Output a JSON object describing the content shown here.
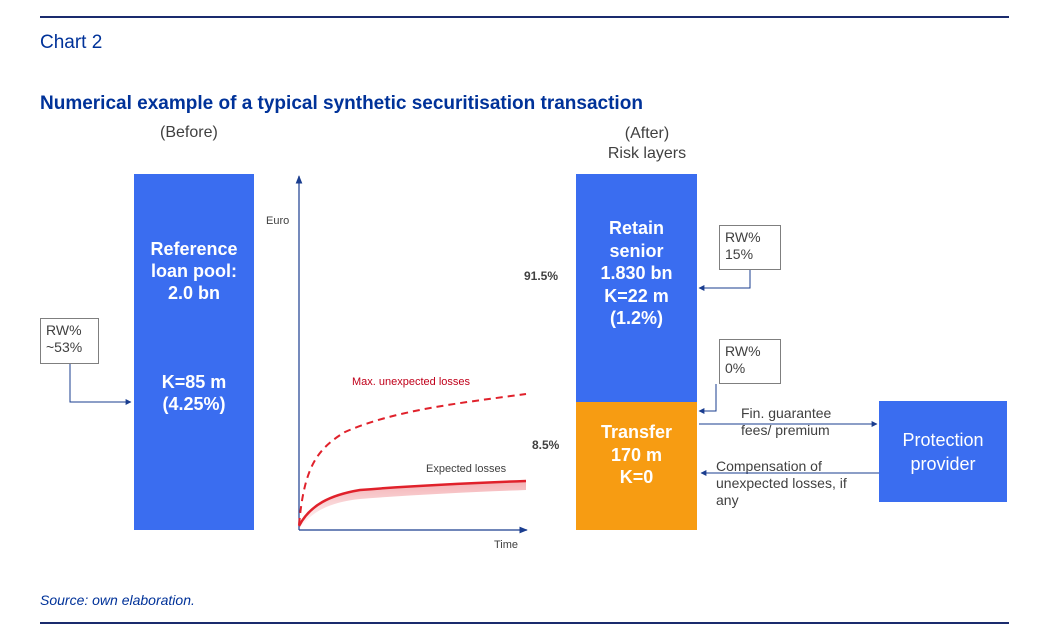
{
  "header": {
    "chart_number": "Chart 2",
    "title": "Numerical example of a typical synthetic securitisation transaction"
  },
  "before": {
    "heading": "(Before)",
    "box_title_lines": [
      "Reference",
      "loan pool:",
      "2.0 bn"
    ],
    "box_k_lines": [
      "K=85 m",
      "(4.25%)"
    ],
    "rw": [
      "RW%",
      "~53%"
    ]
  },
  "loss_chart": {
    "y_axis_label": "Euro",
    "x_axis_label": "Time",
    "series": [
      {
        "name": "Max. unexpected losses",
        "style": "dashed",
        "color": "#e0212b"
      },
      {
        "name": "Expected losses",
        "style": "solid",
        "color": "#e0212b"
      }
    ]
  },
  "after": {
    "heading_lines": [
      "(After)",
      "Risk layers"
    ],
    "senior": {
      "pct": "91.5%",
      "lines": [
        "Retain",
        "senior",
        "1.830 bn",
        "K=22 m",
        "(1.2%)"
      ],
      "rw": [
        "RW%",
        "15%"
      ]
    },
    "transfer": {
      "pct": "8.5%",
      "lines": [
        "Transfer",
        "170 m",
        "K=0"
      ],
      "rw": [
        "RW%",
        "0%"
      ]
    }
  },
  "flows": {
    "to_provider": [
      "Fin. guarantee",
      "fees/ premium"
    ],
    "from_provider": [
      "Compensation of",
      "unexpected losses, if",
      "any"
    ]
  },
  "provider": {
    "lines": [
      "Protection",
      "provider"
    ]
  },
  "footer": {
    "source": "Source: own elaboration."
  },
  "colors": {
    "brand_blue": "#003299",
    "box_blue": "#3a6df0",
    "transfer_orange": "#f79c12",
    "loss_red": "#e0212b"
  }
}
